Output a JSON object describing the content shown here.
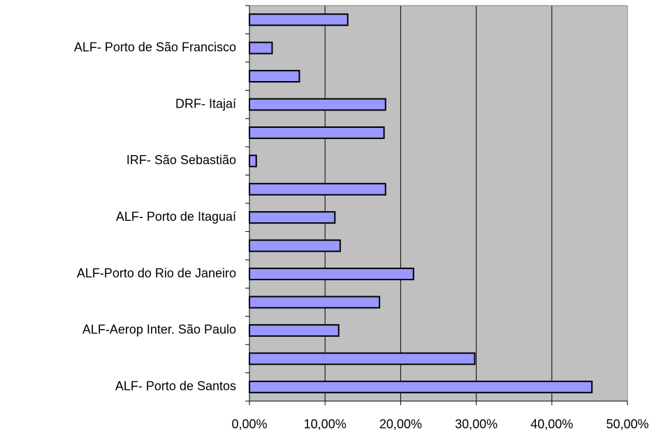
{
  "chart_data": {
    "type": "bar",
    "orientation": "horizontal",
    "categories": [
      null,
      "ALF- Porto de São Francisco",
      null,
      "DRF- Itajaí",
      null,
      "IRF- São Sebastião",
      null,
      "ALF- Porto de Itaguaí",
      null,
      "ALF-Porto do Rio de Janeiro",
      null,
      "ALF-Aerop Inter. São Paulo",
      null,
      "ALF- Porto de Santos"
    ],
    "values": [
      13.0,
      3.0,
      6.6,
      18.0,
      17.8,
      0.9,
      18.0,
      11.3,
      12.0,
      21.7,
      17.2,
      11.8,
      29.8,
      45.3
    ],
    "color": "#9999ff",
    "xlim": [
      0,
      50
    ],
    "xticks": [
      {
        "value": 0,
        "label": "0,00%"
      },
      {
        "value": 10,
        "label": "10,00%"
      },
      {
        "value": 20,
        "label": "20,00%"
      },
      {
        "value": 30,
        "label": "30,00%"
      },
      {
        "value": 40,
        "label": "40,00%"
      },
      {
        "value": 50,
        "label": "50,00%"
      }
    ],
    "grid": true
  }
}
